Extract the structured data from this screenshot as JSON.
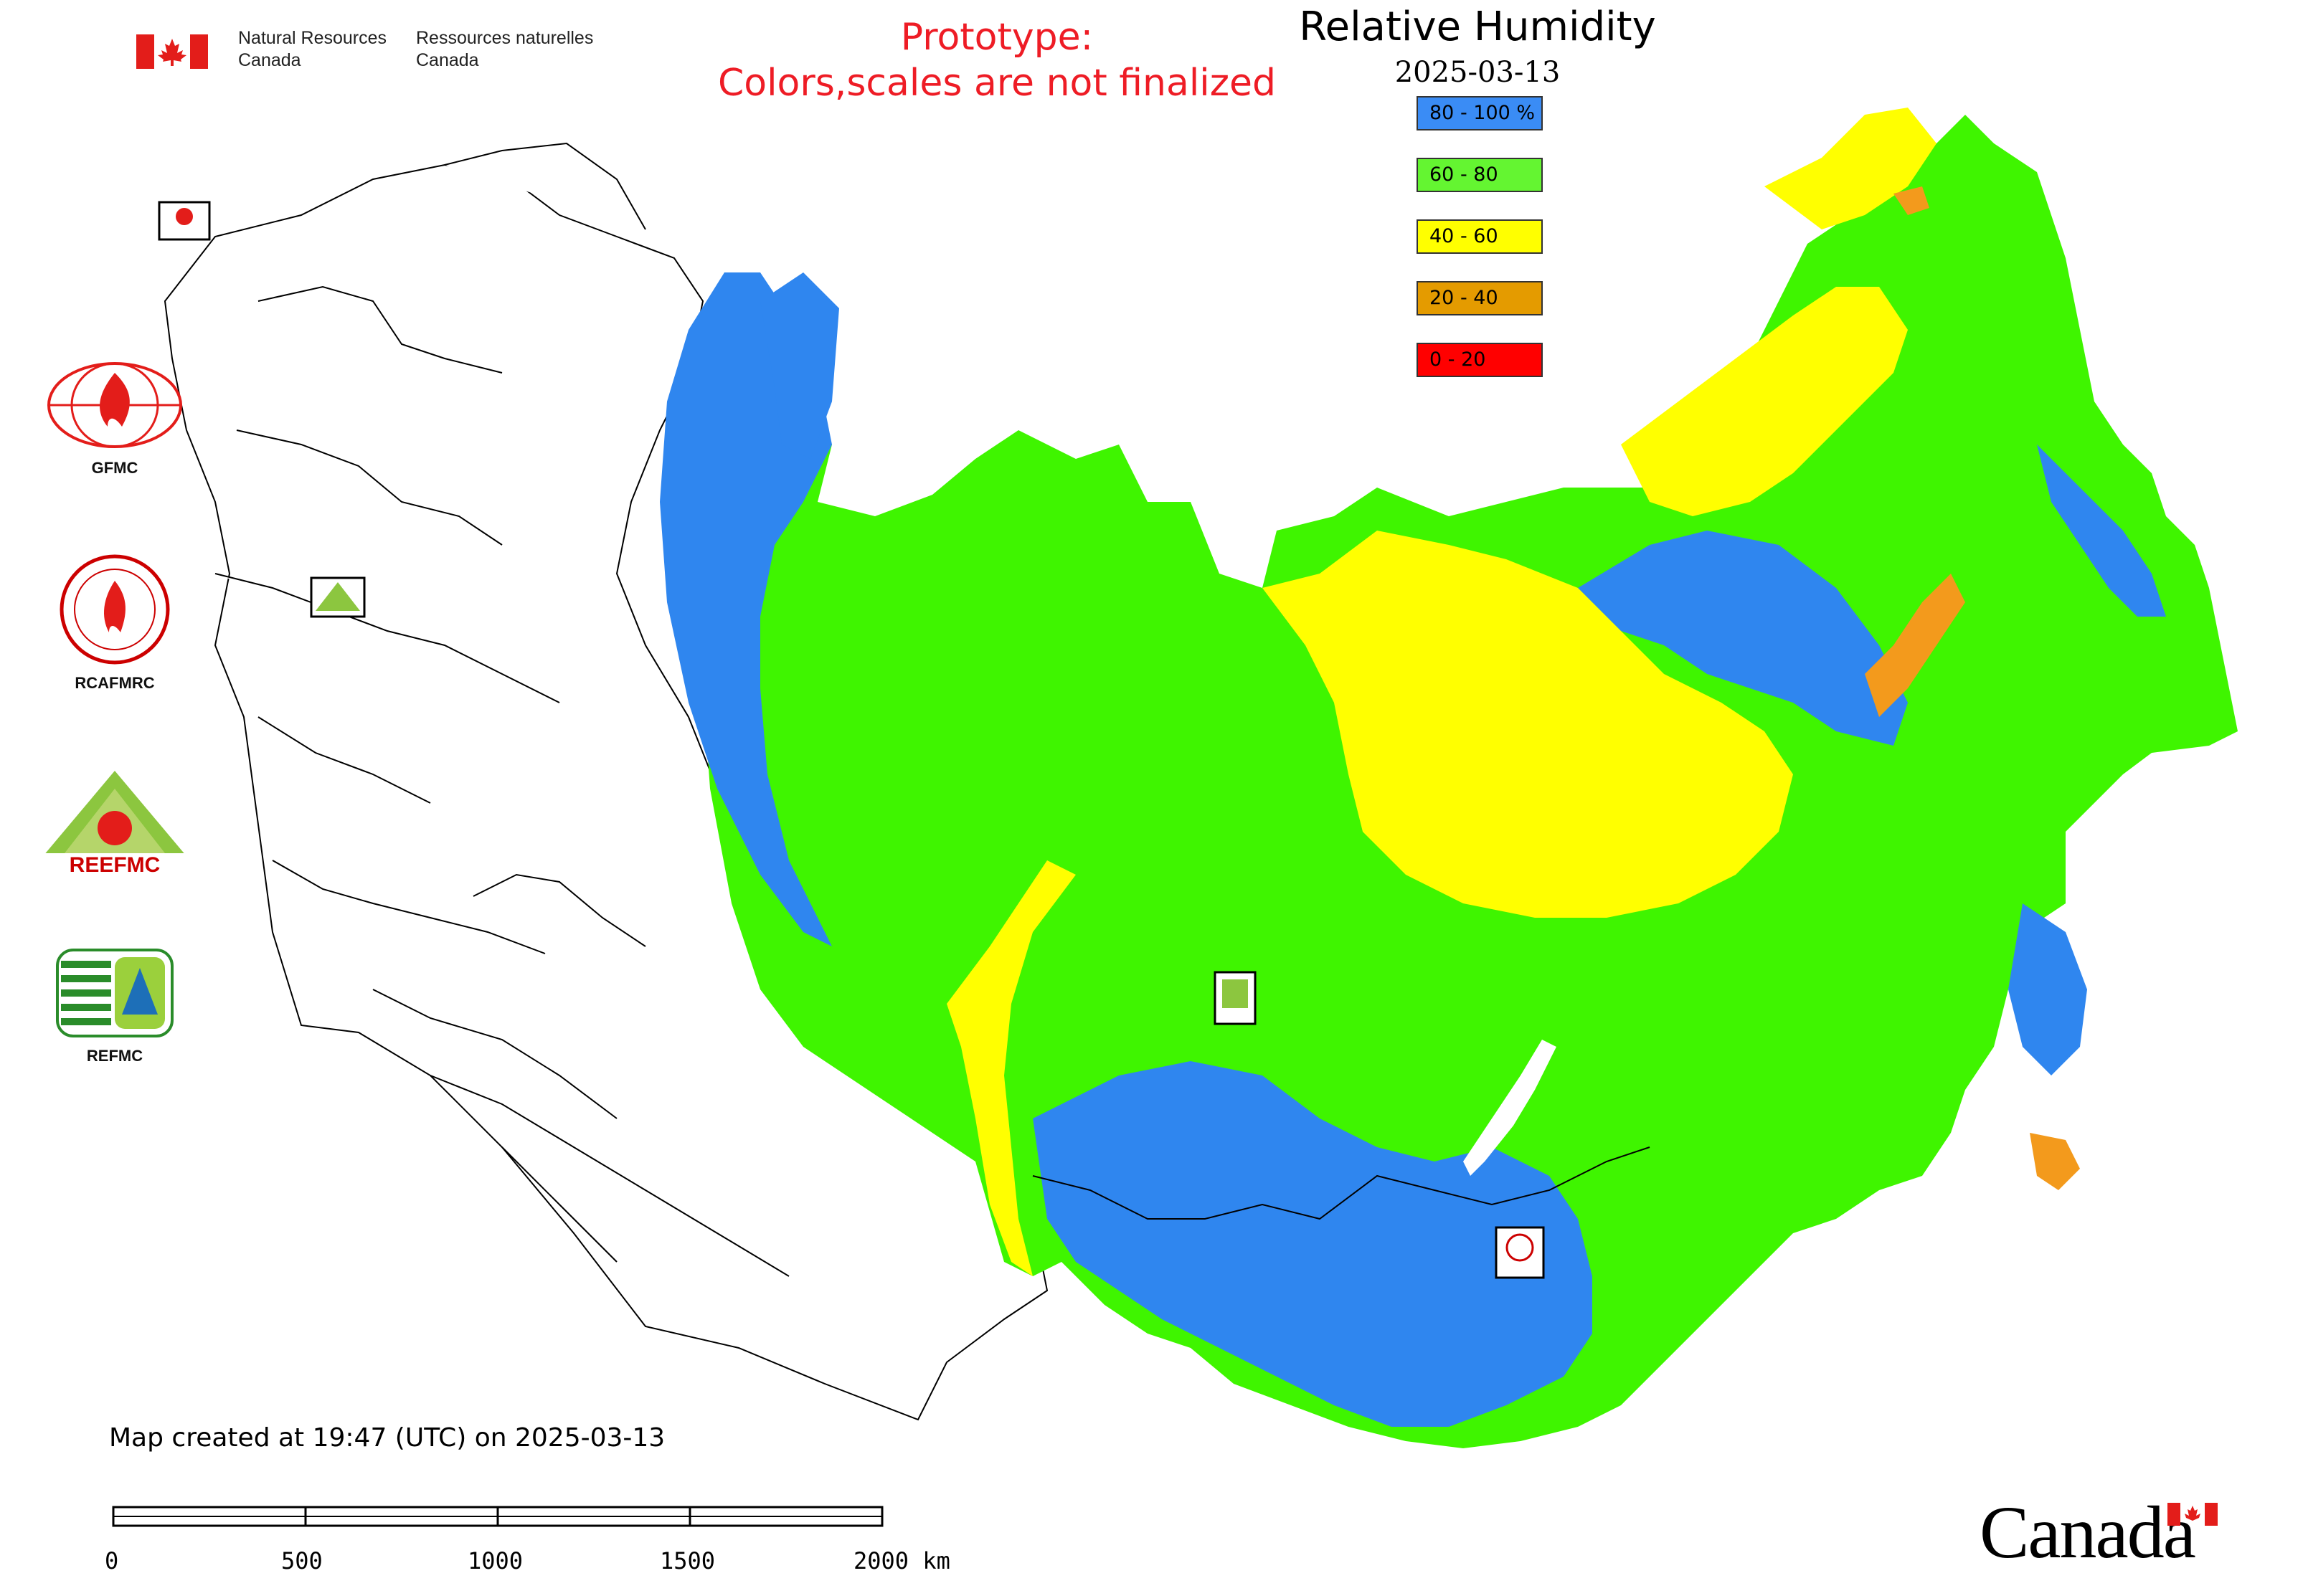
{
  "header": {
    "agency_en": "Natural Resources\nCanada",
    "agency_fr": "Ressources naturelles\nCanada",
    "prototype_note_line1": "Prototype:",
    "prototype_note_line2": "Colors,scales are not finalized"
  },
  "map": {
    "title": "Relative Humidity",
    "date": "2025-03-13",
    "legend": [
      {
        "label": "80 - 100 %",
        "color": "#3a8cf5"
      },
      {
        "label": "60 - 80",
        "color": "#64f531"
      },
      {
        "label": "40 - 60",
        "color": "#ffff00"
      },
      {
        "label": "20 - 40",
        "color": "#e49b00"
      },
      {
        "label": "0 - 20",
        "color": "#ff0000"
      }
    ],
    "colors": {
      "blue": "#2f86ef",
      "green": "#3ff500",
      "yellow": "#ffff00",
      "orange": "#f39a1c",
      "red": "#ff2a00",
      "border": "#000000"
    }
  },
  "logos": [
    {
      "label": "GFMC"
    },
    {
      "label": "RCAFMRC"
    },
    {
      "label": "REEFMC"
    },
    {
      "label": "REFMC"
    }
  ],
  "footer": {
    "created": "Map created at 19:47 (UTC) on 2025-03-13",
    "scale_labels": [
      "0",
      "500",
      "1000",
      "1500",
      "2000 km"
    ],
    "wordmark": "Canada"
  }
}
